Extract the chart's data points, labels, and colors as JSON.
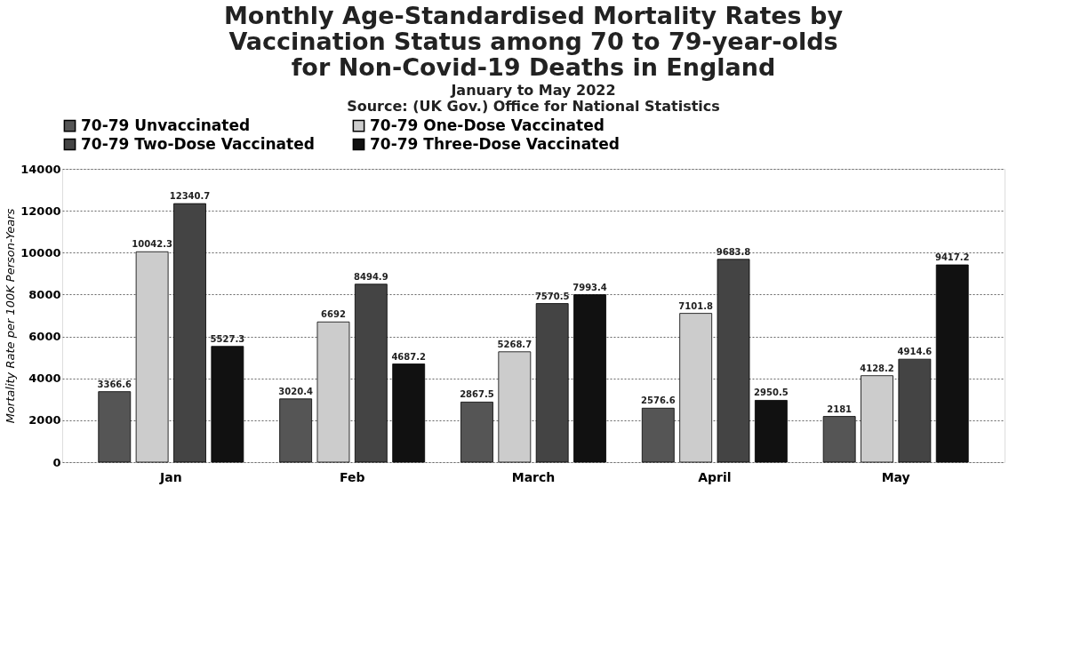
{
  "chart_data": {
    "type": "bar",
    "title": [
      "Monthly Age-Standardised Mortality Rates by",
      "Vaccination Status among 70 to 79-year-olds",
      "for Non-Covid-19 Deaths in England"
    ],
    "subtitle": "January to May 2022",
    "annotations": [
      "Source: (UK Gov.) Office for National Statistics"
    ],
    "ylabel": "Mortality Rate per 100K Person-Years",
    "categories": [
      "Jan",
      "Feb",
      "March",
      "April",
      "May"
    ],
    "series": [
      {
        "name": "70-79 Unvaccinated",
        "color": "#555555",
        "values": [
          3366.6,
          3020.4,
          2867.5,
          2576.6,
          2181
        ]
      },
      {
        "name": "70-79 One-Dose Vaccinated",
        "color": "#cccccc",
        "values": [
          10042.3,
          6692,
          5268.7,
          7101.8,
          4128.2
        ]
      },
      {
        "name": "70-79 Two-Dose Vaccinated",
        "color": "#444444",
        "values": [
          12340.7,
          8494.9,
          7570.5,
          9683.8,
          4914.6
        ]
      },
      {
        "name": "70-79 Three-Dose Vaccinated",
        "color": "#111111",
        "values": [
          5527.3,
          4687.2,
          7993.4,
          2950.5,
          9417.2
        ]
      }
    ],
    "ylim": [
      0,
      14000
    ],
    "yticks": [
      0,
      2000,
      4000,
      6000,
      8000,
      10000,
      12000,
      14000
    ],
    "grid": "y",
    "legend": "top",
    "data_labels": true
  }
}
